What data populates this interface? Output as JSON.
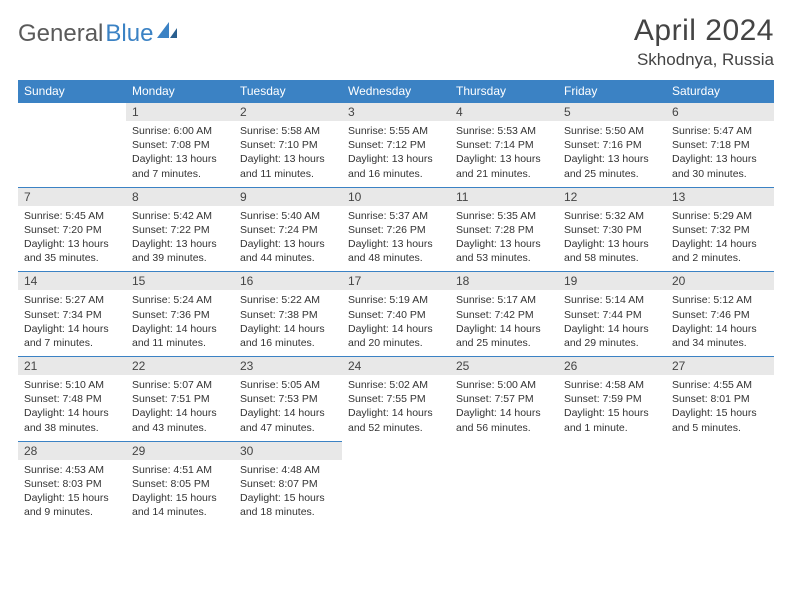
{
  "logo": {
    "part1": "General",
    "part2": "Blue"
  },
  "title": "April 2024",
  "location": "Skhodnya, Russia",
  "colors": {
    "header_bg": "#3b82c4",
    "header_text": "#ffffff",
    "daynum_bg": "#e8e8e8",
    "text": "#333333",
    "border": "#3b82c4"
  },
  "dayHeaders": [
    "Sunday",
    "Monday",
    "Tuesday",
    "Wednesday",
    "Thursday",
    "Friday",
    "Saturday"
  ],
  "weeks": [
    [
      {
        "empty": true
      },
      {
        "day": "1",
        "sunrise": "Sunrise: 6:00 AM",
        "sunset": "Sunset: 7:08 PM",
        "daylight1": "Daylight: 13 hours",
        "daylight2": "and 7 minutes."
      },
      {
        "day": "2",
        "sunrise": "Sunrise: 5:58 AM",
        "sunset": "Sunset: 7:10 PM",
        "daylight1": "Daylight: 13 hours",
        "daylight2": "and 11 minutes."
      },
      {
        "day": "3",
        "sunrise": "Sunrise: 5:55 AM",
        "sunset": "Sunset: 7:12 PM",
        "daylight1": "Daylight: 13 hours",
        "daylight2": "and 16 minutes."
      },
      {
        "day": "4",
        "sunrise": "Sunrise: 5:53 AM",
        "sunset": "Sunset: 7:14 PM",
        "daylight1": "Daylight: 13 hours",
        "daylight2": "and 21 minutes."
      },
      {
        "day": "5",
        "sunrise": "Sunrise: 5:50 AM",
        "sunset": "Sunset: 7:16 PM",
        "daylight1": "Daylight: 13 hours",
        "daylight2": "and 25 minutes."
      },
      {
        "day": "6",
        "sunrise": "Sunrise: 5:47 AM",
        "sunset": "Sunset: 7:18 PM",
        "daylight1": "Daylight: 13 hours",
        "daylight2": "and 30 minutes."
      }
    ],
    [
      {
        "day": "7",
        "sunrise": "Sunrise: 5:45 AM",
        "sunset": "Sunset: 7:20 PM",
        "daylight1": "Daylight: 13 hours",
        "daylight2": "and 35 minutes."
      },
      {
        "day": "8",
        "sunrise": "Sunrise: 5:42 AM",
        "sunset": "Sunset: 7:22 PM",
        "daylight1": "Daylight: 13 hours",
        "daylight2": "and 39 minutes."
      },
      {
        "day": "9",
        "sunrise": "Sunrise: 5:40 AM",
        "sunset": "Sunset: 7:24 PM",
        "daylight1": "Daylight: 13 hours",
        "daylight2": "and 44 minutes."
      },
      {
        "day": "10",
        "sunrise": "Sunrise: 5:37 AM",
        "sunset": "Sunset: 7:26 PM",
        "daylight1": "Daylight: 13 hours",
        "daylight2": "and 48 minutes."
      },
      {
        "day": "11",
        "sunrise": "Sunrise: 5:35 AM",
        "sunset": "Sunset: 7:28 PM",
        "daylight1": "Daylight: 13 hours",
        "daylight2": "and 53 minutes."
      },
      {
        "day": "12",
        "sunrise": "Sunrise: 5:32 AM",
        "sunset": "Sunset: 7:30 PM",
        "daylight1": "Daylight: 13 hours",
        "daylight2": "and 58 minutes."
      },
      {
        "day": "13",
        "sunrise": "Sunrise: 5:29 AM",
        "sunset": "Sunset: 7:32 PM",
        "daylight1": "Daylight: 14 hours",
        "daylight2": "and 2 minutes."
      }
    ],
    [
      {
        "day": "14",
        "sunrise": "Sunrise: 5:27 AM",
        "sunset": "Sunset: 7:34 PM",
        "daylight1": "Daylight: 14 hours",
        "daylight2": "and 7 minutes."
      },
      {
        "day": "15",
        "sunrise": "Sunrise: 5:24 AM",
        "sunset": "Sunset: 7:36 PM",
        "daylight1": "Daylight: 14 hours",
        "daylight2": "and 11 minutes."
      },
      {
        "day": "16",
        "sunrise": "Sunrise: 5:22 AM",
        "sunset": "Sunset: 7:38 PM",
        "daylight1": "Daylight: 14 hours",
        "daylight2": "and 16 minutes."
      },
      {
        "day": "17",
        "sunrise": "Sunrise: 5:19 AM",
        "sunset": "Sunset: 7:40 PM",
        "daylight1": "Daylight: 14 hours",
        "daylight2": "and 20 minutes."
      },
      {
        "day": "18",
        "sunrise": "Sunrise: 5:17 AM",
        "sunset": "Sunset: 7:42 PM",
        "daylight1": "Daylight: 14 hours",
        "daylight2": "and 25 minutes."
      },
      {
        "day": "19",
        "sunrise": "Sunrise: 5:14 AM",
        "sunset": "Sunset: 7:44 PM",
        "daylight1": "Daylight: 14 hours",
        "daylight2": "and 29 minutes."
      },
      {
        "day": "20",
        "sunrise": "Sunrise: 5:12 AM",
        "sunset": "Sunset: 7:46 PM",
        "daylight1": "Daylight: 14 hours",
        "daylight2": "and 34 minutes."
      }
    ],
    [
      {
        "day": "21",
        "sunrise": "Sunrise: 5:10 AM",
        "sunset": "Sunset: 7:48 PM",
        "daylight1": "Daylight: 14 hours",
        "daylight2": "and 38 minutes."
      },
      {
        "day": "22",
        "sunrise": "Sunrise: 5:07 AM",
        "sunset": "Sunset: 7:51 PM",
        "daylight1": "Daylight: 14 hours",
        "daylight2": "and 43 minutes."
      },
      {
        "day": "23",
        "sunrise": "Sunrise: 5:05 AM",
        "sunset": "Sunset: 7:53 PM",
        "daylight1": "Daylight: 14 hours",
        "daylight2": "and 47 minutes."
      },
      {
        "day": "24",
        "sunrise": "Sunrise: 5:02 AM",
        "sunset": "Sunset: 7:55 PM",
        "daylight1": "Daylight: 14 hours",
        "daylight2": "and 52 minutes."
      },
      {
        "day": "25",
        "sunrise": "Sunrise: 5:00 AM",
        "sunset": "Sunset: 7:57 PM",
        "daylight1": "Daylight: 14 hours",
        "daylight2": "and 56 minutes."
      },
      {
        "day": "26",
        "sunrise": "Sunrise: 4:58 AM",
        "sunset": "Sunset: 7:59 PM",
        "daylight1": "Daylight: 15 hours",
        "daylight2": "and 1 minute."
      },
      {
        "day": "27",
        "sunrise": "Sunrise: 4:55 AM",
        "sunset": "Sunset: 8:01 PM",
        "daylight1": "Daylight: 15 hours",
        "daylight2": "and 5 minutes."
      }
    ],
    [
      {
        "day": "28",
        "sunrise": "Sunrise: 4:53 AM",
        "sunset": "Sunset: 8:03 PM",
        "daylight1": "Daylight: 15 hours",
        "daylight2": "and 9 minutes."
      },
      {
        "day": "29",
        "sunrise": "Sunrise: 4:51 AM",
        "sunset": "Sunset: 8:05 PM",
        "daylight1": "Daylight: 15 hours",
        "daylight2": "and 14 minutes."
      },
      {
        "day": "30",
        "sunrise": "Sunrise: 4:48 AM",
        "sunset": "Sunset: 8:07 PM",
        "daylight1": "Daylight: 15 hours",
        "daylight2": "and 18 minutes."
      },
      {
        "empty": true
      },
      {
        "empty": true
      },
      {
        "empty": true
      },
      {
        "empty": true
      }
    ]
  ]
}
